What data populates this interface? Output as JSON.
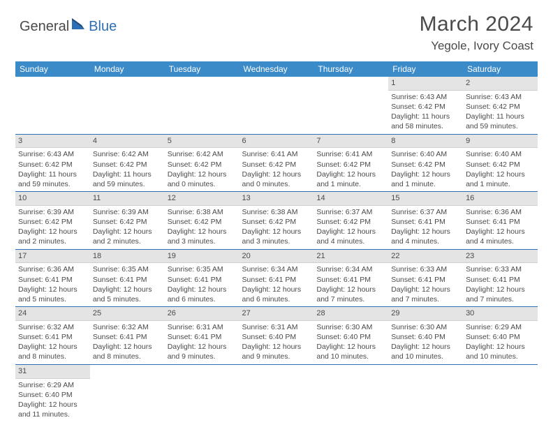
{
  "brand": {
    "part1": "General",
    "part2": "Blue"
  },
  "title": "March 2024",
  "location": "Yegole, Ivory Coast",
  "colors": {
    "header_bg": "#3b8bc9",
    "accent": "#2d6fb5",
    "daynum_bg": "#e4e4e4",
    "text": "#4a4a4a",
    "white": "#ffffff"
  },
  "day_names": [
    "Sunday",
    "Monday",
    "Tuesday",
    "Wednesday",
    "Thursday",
    "Friday",
    "Saturday"
  ],
  "weeks": [
    [
      {
        "empty": true
      },
      {
        "empty": true
      },
      {
        "empty": true
      },
      {
        "empty": true
      },
      {
        "empty": true
      },
      {
        "n": "1",
        "sr": "6:43 AM",
        "ss": "6:42 PM",
        "dl": "11 hours and 58 minutes."
      },
      {
        "n": "2",
        "sr": "6:43 AM",
        "ss": "6:42 PM",
        "dl": "11 hours and 59 minutes."
      }
    ],
    [
      {
        "n": "3",
        "sr": "6:43 AM",
        "ss": "6:42 PM",
        "dl": "11 hours and 59 minutes."
      },
      {
        "n": "4",
        "sr": "6:42 AM",
        "ss": "6:42 PM",
        "dl": "11 hours and 59 minutes."
      },
      {
        "n": "5",
        "sr": "6:42 AM",
        "ss": "6:42 PM",
        "dl": "12 hours and 0 minutes."
      },
      {
        "n": "6",
        "sr": "6:41 AM",
        "ss": "6:42 PM",
        "dl": "12 hours and 0 minutes."
      },
      {
        "n": "7",
        "sr": "6:41 AM",
        "ss": "6:42 PM",
        "dl": "12 hours and 1 minute."
      },
      {
        "n": "8",
        "sr": "6:40 AM",
        "ss": "6:42 PM",
        "dl": "12 hours and 1 minute."
      },
      {
        "n": "9",
        "sr": "6:40 AM",
        "ss": "6:42 PM",
        "dl": "12 hours and 1 minute."
      }
    ],
    [
      {
        "n": "10",
        "sr": "6:39 AM",
        "ss": "6:42 PM",
        "dl": "12 hours and 2 minutes."
      },
      {
        "n": "11",
        "sr": "6:39 AM",
        "ss": "6:42 PM",
        "dl": "12 hours and 2 minutes."
      },
      {
        "n": "12",
        "sr": "6:38 AM",
        "ss": "6:42 PM",
        "dl": "12 hours and 3 minutes."
      },
      {
        "n": "13",
        "sr": "6:38 AM",
        "ss": "6:42 PM",
        "dl": "12 hours and 3 minutes."
      },
      {
        "n": "14",
        "sr": "6:37 AM",
        "ss": "6:42 PM",
        "dl": "12 hours and 4 minutes."
      },
      {
        "n": "15",
        "sr": "6:37 AM",
        "ss": "6:41 PM",
        "dl": "12 hours and 4 minutes."
      },
      {
        "n": "16",
        "sr": "6:36 AM",
        "ss": "6:41 PM",
        "dl": "12 hours and 4 minutes."
      }
    ],
    [
      {
        "n": "17",
        "sr": "6:36 AM",
        "ss": "6:41 PM",
        "dl": "12 hours and 5 minutes."
      },
      {
        "n": "18",
        "sr": "6:35 AM",
        "ss": "6:41 PM",
        "dl": "12 hours and 5 minutes."
      },
      {
        "n": "19",
        "sr": "6:35 AM",
        "ss": "6:41 PM",
        "dl": "12 hours and 6 minutes."
      },
      {
        "n": "20",
        "sr": "6:34 AM",
        "ss": "6:41 PM",
        "dl": "12 hours and 6 minutes."
      },
      {
        "n": "21",
        "sr": "6:34 AM",
        "ss": "6:41 PM",
        "dl": "12 hours and 7 minutes."
      },
      {
        "n": "22",
        "sr": "6:33 AM",
        "ss": "6:41 PM",
        "dl": "12 hours and 7 minutes."
      },
      {
        "n": "23",
        "sr": "6:33 AM",
        "ss": "6:41 PM",
        "dl": "12 hours and 7 minutes."
      }
    ],
    [
      {
        "n": "24",
        "sr": "6:32 AM",
        "ss": "6:41 PM",
        "dl": "12 hours and 8 minutes."
      },
      {
        "n": "25",
        "sr": "6:32 AM",
        "ss": "6:41 PM",
        "dl": "12 hours and 8 minutes."
      },
      {
        "n": "26",
        "sr": "6:31 AM",
        "ss": "6:41 PM",
        "dl": "12 hours and 9 minutes."
      },
      {
        "n": "27",
        "sr": "6:31 AM",
        "ss": "6:40 PM",
        "dl": "12 hours and 9 minutes."
      },
      {
        "n": "28",
        "sr": "6:30 AM",
        "ss": "6:40 PM",
        "dl": "12 hours and 10 minutes."
      },
      {
        "n": "29",
        "sr": "6:30 AM",
        "ss": "6:40 PM",
        "dl": "12 hours and 10 minutes."
      },
      {
        "n": "30",
        "sr": "6:29 AM",
        "ss": "6:40 PM",
        "dl": "12 hours and 10 minutes."
      }
    ],
    [
      {
        "n": "31",
        "sr": "6:29 AM",
        "ss": "6:40 PM",
        "dl": "12 hours and 11 minutes."
      },
      {
        "empty": true
      },
      {
        "empty": true
      },
      {
        "empty": true
      },
      {
        "empty": true
      },
      {
        "empty": true
      },
      {
        "empty": true
      }
    ]
  ],
  "labels": {
    "sunrise": "Sunrise:",
    "sunset": "Sunset:",
    "daylight": "Daylight:"
  }
}
